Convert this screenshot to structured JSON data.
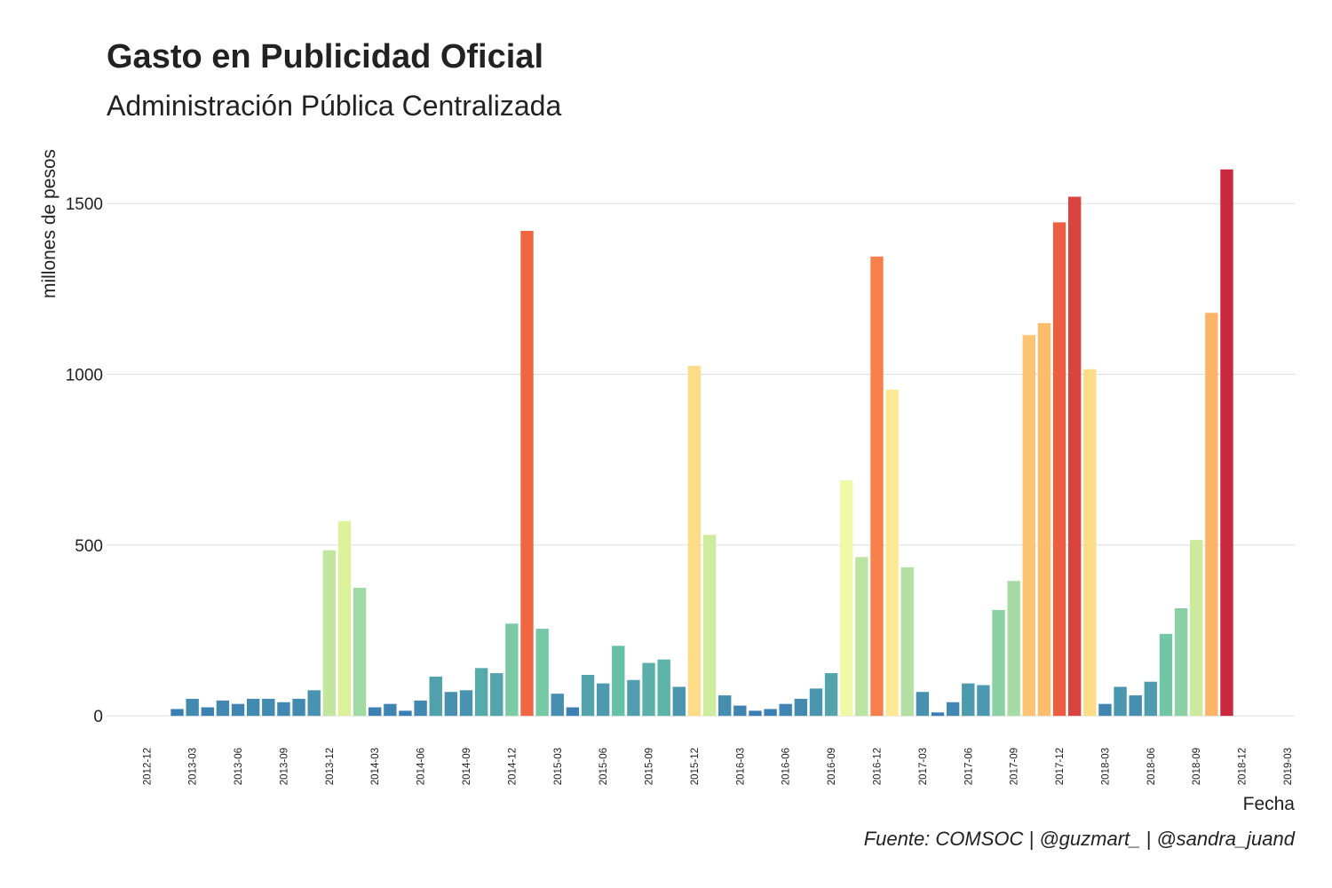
{
  "chart_data": {
    "type": "bar",
    "title": "Gasto en Publicidad Oficial",
    "subtitle": "Administración Pública Centralizada",
    "ylabel": "millones de pesos",
    "xlabel": "Fecha",
    "caption": "Fuente: COMSOC | @guzmart_ | @sandra_juand",
    "x": [
      "2013-02",
      "2013-03",
      "2013-04",
      "2013-05",
      "2013-06",
      "2013-07",
      "2013-08",
      "2013-09",
      "2013-10",
      "2013-11",
      "2013-12",
      "2014-01",
      "2014-02",
      "2014-03",
      "2014-04",
      "2014-05",
      "2014-06",
      "2014-07",
      "2014-08",
      "2014-09",
      "2014-10",
      "2014-11",
      "2014-12",
      "2015-01",
      "2015-02",
      "2015-03",
      "2015-04",
      "2015-05",
      "2015-06",
      "2015-07",
      "2015-08",
      "2015-09",
      "2015-10",
      "2015-11",
      "2015-12",
      "2016-01",
      "2016-02",
      "2016-03",
      "2016-04",
      "2016-05",
      "2016-06",
      "2016-07",
      "2016-08",
      "2016-09",
      "2016-10",
      "2016-11",
      "2016-12",
      "2017-01",
      "2017-02",
      "2017-03",
      "2017-04",
      "2017-05",
      "2017-06",
      "2017-07",
      "2017-08",
      "2017-09",
      "2017-10",
      "2017-11",
      "2017-12",
      "2018-01",
      "2018-02",
      "2018-03",
      "2018-04",
      "2018-05",
      "2018-06",
      "2018-07",
      "2018-08",
      "2018-09",
      "2018-10",
      "2018-11"
    ],
    "values": [
      20,
      50,
      25,
      45,
      35,
      50,
      50,
      40,
      50,
      75,
      485,
      570,
      375,
      25,
      35,
      15,
      45,
      115,
      70,
      75,
      140,
      125,
      270,
      1420,
      255,
      65,
      25,
      120,
      95,
      205,
      105,
      155,
      165,
      85,
      1025,
      530,
      60,
      30,
      15,
      20,
      35,
      50,
      80,
      125,
      690,
      465,
      1345,
      955,
      435,
      70,
      10,
      40,
      95,
      90,
      310,
      395,
      1115,
      1150,
      1445,
      1520,
      1015,
      35,
      85,
      60,
      100,
      240,
      315,
      515,
      1180,
      1600
    ],
    "color_scale": [
      "#3a7cb4",
      "#66c2a5",
      "#abdda4",
      "#e6f598",
      "#ffffbf",
      "#fee08b",
      "#fdae61",
      "#f46d43",
      "#c9283e"
    ],
    "xlim": [
      "2012-10",
      "2019-03"
    ],
    "xticks": [
      "2012-12",
      "2013-03",
      "2013-06",
      "2013-09",
      "2013-12",
      "2014-03",
      "2014-06",
      "2014-09",
      "2014-12",
      "2015-03",
      "2015-06",
      "2015-09",
      "2015-12",
      "2016-03",
      "2016-06",
      "2016-09",
      "2016-12",
      "2017-03",
      "2017-06",
      "2017-09",
      "2017-12",
      "2018-03",
      "2018-06",
      "2018-09",
      "2018-12",
      "2019-03"
    ],
    "ylim": [
      -75,
      1680
    ],
    "yticks": [
      0,
      500,
      1000,
      1500
    ],
    "grid": true
  }
}
